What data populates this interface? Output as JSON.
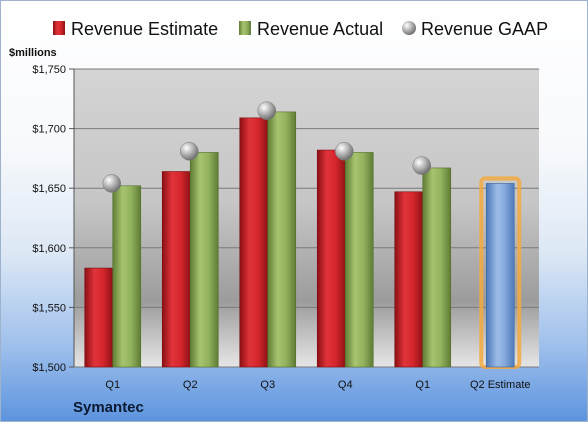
{
  "company": "Symantec",
  "unit_label": "$millions",
  "colors": {
    "estimate": "#cc2229",
    "actual": "#8fb05a",
    "gaap": "#a9a9a9",
    "estimate_projection": "#7fa6dc",
    "projection_glow": "#f5a940"
  },
  "chart_data": {
    "type": "bar",
    "categories": [
      "Q1",
      "Q2",
      "Q3",
      "Q4",
      "Q1",
      "Q2 Estimate"
    ],
    "series": [
      {
        "name": "Revenue Estimate",
        "values": [
          1583,
          1664,
          1709,
          1682,
          1647,
          1654
        ]
      },
      {
        "name": "Revenue Actual",
        "values": [
          1652,
          1680,
          1714,
          1680,
          1667,
          null
        ]
      },
      {
        "name": "Revenue GAAP",
        "values": [
          1654,
          1681,
          1715,
          1681,
          1669,
          null
        ]
      }
    ],
    "ylim": [
      1500,
      1750
    ],
    "yticks": [
      1500,
      1550,
      1600,
      1650,
      1700,
      1750
    ],
    "ytick_labels": [
      "$1,500",
      "$1,550",
      "$1,600",
      "$1,650",
      "$1,700",
      "$1,750"
    ],
    "legend_position": "top",
    "grid": true
  }
}
